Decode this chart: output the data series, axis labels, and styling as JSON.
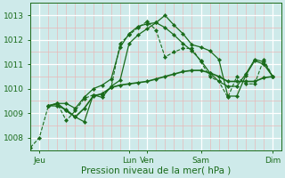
{
  "xlabel": "Pression niveau de la mer( hPa )",
  "background_color": "#ceeaea",
  "grid_major_color": "#ffffff",
  "grid_minor_color": "#e8b8b8",
  "line_color": "#1a6b1a",
  "ylim": [
    1007.5,
    1013.5
  ],
  "xlim": [
    0,
    28
  ],
  "xtick_labels": [
    "Jeu",
    "Lun",
    "Ven",
    "Sam",
    "Dim"
  ],
  "xtick_positions": [
    1,
    11,
    13,
    19,
    27
  ],
  "ytick_positions": [
    1008,
    1009,
    1010,
    1011,
    1012,
    1013
  ],
  "series": [
    {
      "x": [
        0,
        1,
        2,
        3,
        4,
        5,
        6,
        7,
        8,
        9,
        10,
        11,
        12,
        13,
        14,
        15,
        16,
        17,
        18,
        19,
        20,
        21,
        22,
        23,
        24,
        25,
        26,
        27
      ],
      "y": [
        1007.6,
        1008.0,
        1009.3,
        1009.4,
        1008.7,
        1009.1,
        1009.6,
        1009.75,
        1009.75,
        1010.05,
        1011.85,
        1012.2,
        1012.5,
        1012.75,
        1012.4,
        1011.3,
        1011.5,
        1011.65,
        1011.65,
        1011.1,
        1010.5,
        1010.3,
        1009.65,
        1010.5,
        1010.2,
        1010.2,
        1011.2,
        1010.5
      ],
      "linestyle": "--",
      "linewidth": 0.8,
      "markersize": 2.2
    },
    {
      "x": [
        2,
        3,
        4,
        5,
        6,
        7,
        8,
        9,
        10,
        11,
        12,
        13,
        14,
        15,
        16,
        17,
        18,
        19,
        20,
        21,
        22,
        23,
        24,
        25,
        26,
        27
      ],
      "y": [
        1009.3,
        1009.4,
        1009.1,
        1008.85,
        1009.2,
        1009.7,
        1009.8,
        1010.05,
        1010.15,
        1010.2,
        1010.25,
        1010.3,
        1010.4,
        1010.5,
        1010.6,
        1010.7,
        1010.75,
        1010.75,
        1010.65,
        1010.5,
        1010.3,
        1010.3,
        1010.3,
        1010.3,
        1010.45,
        1010.5
      ],
      "linestyle": "-",
      "linewidth": 1.2,
      "markersize": 2.2
    },
    {
      "x": [
        2,
        3,
        4,
        5,
        6,
        7,
        8,
        9,
        10,
        11,
        12,
        13,
        14,
        15,
        16,
        17,
        18,
        19,
        20,
        21,
        22,
        23,
        24,
        25,
        26,
        27
      ],
      "y": [
        1009.3,
        1009.4,
        1009.4,
        1009.2,
        1009.65,
        1010.0,
        1010.15,
        1010.4,
        1011.7,
        1012.25,
        1012.55,
        1012.65,
        1012.7,
        1012.5,
        1012.2,
        1011.85,
        1011.55,
        1011.15,
        1010.65,
        1010.3,
        1010.1,
        1010.1,
        1010.6,
        1011.2,
        1011.1,
        1010.5
      ],
      "linestyle": "-",
      "linewidth": 0.9,
      "markersize": 2.2
    },
    {
      "x": [
        2,
        3,
        4,
        5,
        6,
        7,
        8,
        9,
        10,
        11,
        12,
        13,
        14,
        15,
        16,
        17,
        18,
        19,
        20,
        21,
        22,
        23,
        24,
        25,
        26,
        27
      ],
      "y": [
        1009.3,
        1009.3,
        1009.15,
        1008.85,
        1008.65,
        1009.75,
        1009.65,
        1010.1,
        1010.35,
        1011.85,
        1012.2,
        1012.45,
        1012.7,
        1013.0,
        1012.6,
        1012.25,
        1011.8,
        1011.7,
        1011.55,
        1011.2,
        1009.7,
        1009.7,
        1010.55,
        1011.15,
        1011.0,
        1010.5
      ],
      "linestyle": "-",
      "linewidth": 0.9,
      "markersize": 2.2
    }
  ]
}
